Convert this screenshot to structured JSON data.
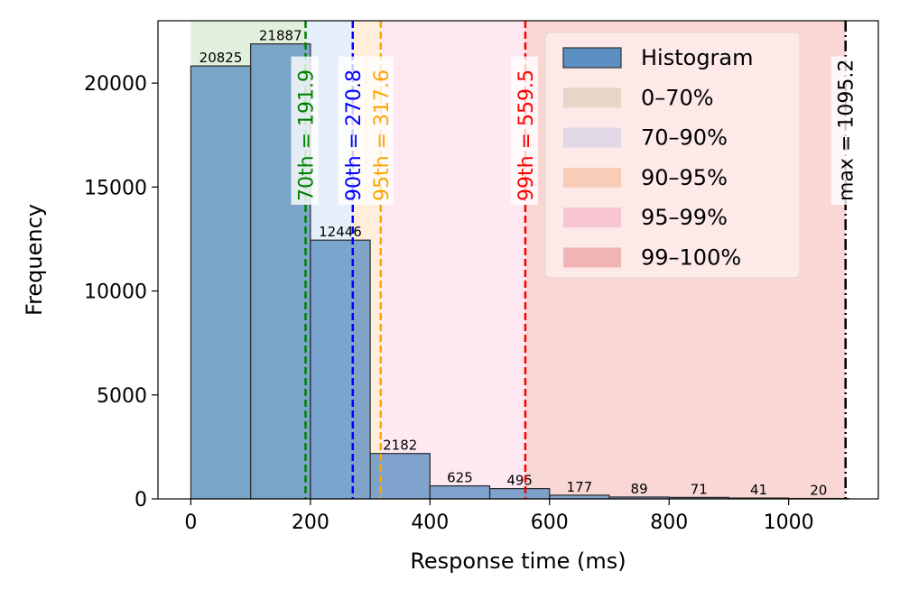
{
  "chart_data": {
    "type": "bar",
    "xlabel": "Response time (ms)",
    "ylabel": "Frequency",
    "xlim": [
      -55,
      1150
    ],
    "ylim": [
      0,
      23000
    ],
    "xticks": [
      0,
      200,
      400,
      600,
      800,
      1000
    ],
    "yticks": [
      0,
      5000,
      10000,
      15000,
      20000
    ],
    "bins": [
      {
        "start": 0,
        "end": 100,
        "count": 20825,
        "label": "20825"
      },
      {
        "start": 100,
        "end": 200,
        "count": 21887,
        "label": "21887"
      },
      {
        "start": 200,
        "end": 300,
        "count": 12446,
        "label": "12446"
      },
      {
        "start": 300,
        "end": 400,
        "count": 2182,
        "label": "2182"
      },
      {
        "start": 400,
        "end": 500,
        "count": 625,
        "label": "625"
      },
      {
        "start": 500,
        "end": 600,
        "count": 495,
        "label": "495"
      },
      {
        "start": 600,
        "end": 700,
        "count": 177,
        "label": "177"
      },
      {
        "start": 700,
        "end": 800,
        "count": 89,
        "label": "89"
      },
      {
        "start": 800,
        "end": 900,
        "count": 71,
        "label": "71"
      },
      {
        "start": 900,
        "end": 1000,
        "count": 41,
        "label": "41"
      },
      {
        "start": 1000,
        "end": 1100,
        "count": 20,
        "label": "20"
      }
    ],
    "bar_color": "#5b8fc2",
    "bar_edge_color": "#2b2b2b",
    "bands": [
      {
        "name": "0–70%",
        "from": 0,
        "to": 191.9,
        "color": "#c9e4c1"
      },
      {
        "name": "70–90%",
        "from": 191.9,
        "to": 270.8,
        "color": "#cfe3f7"
      },
      {
        "name": "90–95%",
        "from": 270.8,
        "to": 317.6,
        "color": "#ffe0c0"
      },
      {
        "name": "95–99%",
        "from": 317.6,
        "to": 559.5,
        "color": "#fdd6e6"
      },
      {
        "name": "99–100%",
        "from": 559.5,
        "to": 1095.2,
        "color": "#f4b6b2"
      }
    ],
    "markers": [
      {
        "value": 191.9,
        "label": "70th = 191.9",
        "color": "#008000",
        "style": "dashed"
      },
      {
        "value": 270.8,
        "label": "90th = 270.8",
        "color": "#0000ff",
        "style": "dashed"
      },
      {
        "value": 317.6,
        "label": "95th = 317.6",
        "color": "#ffa500",
        "style": "dashed"
      },
      {
        "value": 559.5,
        "label": "99th = 559.5",
        "color": "#ff0000",
        "style": "dashed"
      },
      {
        "value": 1095.2,
        "label": "max = 1095.2",
        "color": "#000000",
        "style": "dashdot"
      }
    ],
    "legend": {
      "position": "top-right",
      "entries": [
        {
          "label": "Histogram",
          "color": "#5b8fc2",
          "kind": "bar"
        },
        {
          "label": "0–70%",
          "color": "#e6d6c8",
          "kind": "band"
        },
        {
          "label": "70–90%",
          "color": "#e0d8e6",
          "kind": "band"
        },
        {
          "label": "90–95%",
          "color": "#f8cdb8",
          "kind": "band"
        },
        {
          "label": "95–99%",
          "color": "#f8c6d2",
          "kind": "band"
        },
        {
          "label": "99–100%",
          "color": "#f1b3b3",
          "kind": "band"
        }
      ]
    }
  }
}
